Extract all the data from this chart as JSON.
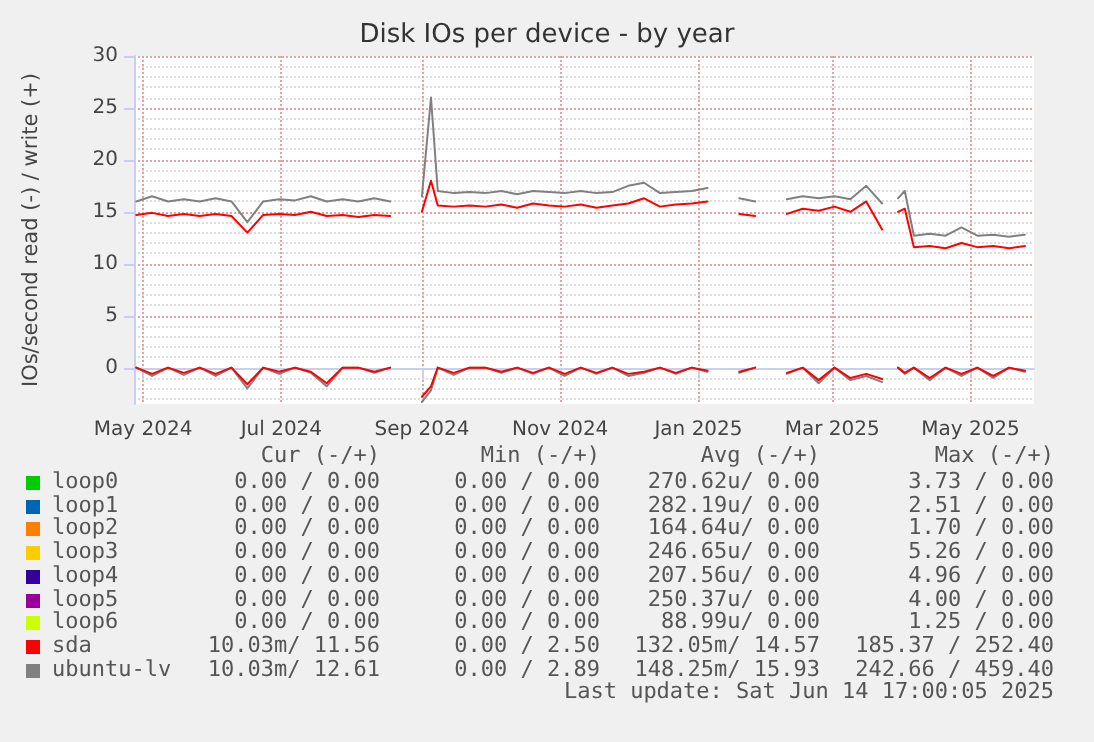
{
  "chart_data": {
    "type": "line",
    "title": "Disk IOs per device - by year",
    "ylabel": "IOs/second read (-) / write (+)",
    "x": [
      "2024-04-28",
      "2024-05-05",
      "2024-05-12",
      "2024-05-19",
      "2024-05-26",
      "2024-06-02",
      "2024-06-09",
      "2024-06-16",
      "2024-06-23",
      "2024-06-30",
      "2024-07-07",
      "2024-07-14",
      "2024-07-21",
      "2024-07-28",
      "2024-08-04",
      "2024-08-11",
      "2024-08-18",
      "2024-08-25",
      "2024-09-01",
      "2024-09-05",
      "2024-09-08",
      "2024-09-15",
      "2024-09-22",
      "2024-09-29",
      "2024-10-06",
      "2024-10-13",
      "2024-10-20",
      "2024-10-27",
      "2024-11-03",
      "2024-11-10",
      "2024-11-17",
      "2024-11-24",
      "2024-12-01",
      "2024-12-08",
      "2024-12-15",
      "2024-12-22",
      "2024-12-29",
      "2025-01-05",
      "2025-01-12",
      "2025-01-19",
      "2025-01-26",
      "2025-02-02",
      "2025-02-09",
      "2025-02-16",
      "2025-02-23",
      "2025-03-02",
      "2025-03-09",
      "2025-03-16",
      "2025-03-23",
      "2025-03-27",
      "2025-03-30",
      "2025-04-02",
      "2025-04-06",
      "2025-04-13",
      "2025-04-20",
      "2025-04-27",
      "2025-05-04",
      "2025-05-11",
      "2025-05-18",
      "2025-05-25"
    ],
    "series": [
      {
        "name": "loop0",
        "color": "#00cc00",
        "values": [
          null,
          null,
          null,
          null,
          null,
          null,
          null,
          null,
          null,
          null,
          null,
          null,
          null,
          null,
          null,
          null,
          null,
          null,
          null,
          null,
          null,
          null,
          null,
          null,
          null,
          null,
          null,
          null,
          null,
          null,
          null,
          null,
          null,
          null,
          null,
          null,
          null,
          null,
          null,
          null,
          null,
          null,
          null,
          null,
          null,
          null,
          null,
          null,
          null,
          null,
          null,
          null,
          null,
          null,
          null,
          null,
          null,
          null,
          null,
          null
        ]
      },
      {
        "name": "loop1",
        "color": "#0066b3",
        "values": [
          null,
          null,
          null,
          null,
          null,
          null,
          null,
          null,
          null,
          null,
          null,
          null,
          null,
          null,
          null,
          null,
          null,
          null,
          null,
          null,
          null,
          null,
          null,
          null,
          null,
          null,
          null,
          null,
          null,
          null,
          null,
          null,
          null,
          null,
          null,
          null,
          null,
          null,
          null,
          null,
          null,
          null,
          null,
          null,
          null,
          null,
          null,
          null,
          null,
          null,
          null,
          null,
          null,
          null,
          null,
          null,
          null,
          null,
          null,
          null
        ]
      },
      {
        "name": "loop2",
        "color": "#ff8000",
        "values": [
          null,
          null,
          null,
          null,
          null,
          null,
          null,
          null,
          null,
          null,
          null,
          null,
          null,
          null,
          null,
          null,
          null,
          null,
          null,
          null,
          null,
          null,
          null,
          null,
          null,
          null,
          null,
          null,
          null,
          null,
          null,
          null,
          null,
          null,
          null,
          null,
          null,
          null,
          null,
          null,
          null,
          null,
          null,
          null,
          null,
          null,
          null,
          null,
          null,
          null,
          null,
          null,
          null,
          null,
          null,
          null,
          null,
          null,
          null,
          null
        ]
      },
      {
        "name": "loop3",
        "color": "#ffcc00",
        "values": [
          null,
          null,
          null,
          null,
          null,
          null,
          null,
          null,
          null,
          null,
          null,
          null,
          null,
          null,
          null,
          null,
          null,
          null,
          null,
          null,
          null,
          null,
          null,
          null,
          null,
          null,
          null,
          null,
          null,
          null,
          null,
          null,
          null,
          null,
          null,
          null,
          null,
          null,
          null,
          null,
          null,
          null,
          null,
          null,
          null,
          null,
          null,
          null,
          null,
          null,
          null,
          null,
          null,
          null,
          null,
          null,
          null,
          null,
          null,
          null
        ]
      },
      {
        "name": "loop4",
        "color": "#330099",
        "values": [
          null,
          null,
          null,
          null,
          null,
          null,
          null,
          null,
          null,
          null,
          null,
          null,
          null,
          null,
          null,
          null,
          null,
          null,
          null,
          null,
          null,
          null,
          null,
          null,
          null,
          null,
          null,
          null,
          null,
          null,
          null,
          null,
          null,
          null,
          null,
          null,
          null,
          null,
          null,
          null,
          null,
          null,
          null,
          null,
          null,
          null,
          null,
          null,
          null,
          null,
          null,
          null,
          null,
          null,
          null,
          null,
          null,
          null,
          null,
          null
        ]
      },
      {
        "name": "loop5",
        "color": "#990099",
        "values": [
          null,
          null,
          null,
          null,
          null,
          null,
          null,
          null,
          null,
          null,
          null,
          null,
          null,
          null,
          null,
          null,
          null,
          null,
          null,
          null,
          null,
          null,
          null,
          null,
          null,
          null,
          null,
          null,
          null,
          null,
          null,
          null,
          null,
          null,
          null,
          null,
          null,
          null,
          null,
          null,
          null,
          null,
          null,
          null,
          null,
          null,
          null,
          null,
          null,
          null,
          null,
          null,
          null,
          null,
          null,
          null,
          null,
          null,
          null,
          null
        ]
      },
      {
        "name": "loop6",
        "color": "#ccff00",
        "values": [
          null,
          null,
          null,
          null,
          null,
          null,
          null,
          null,
          null,
          null,
          null,
          null,
          null,
          null,
          null,
          null,
          null,
          null,
          null,
          null,
          null,
          null,
          null,
          null,
          null,
          null,
          null,
          null,
          null,
          null,
          null,
          null,
          null,
          null,
          null,
          null,
          null,
          null,
          null,
          null,
          null,
          null,
          null,
          null,
          null,
          null,
          null,
          null,
          null,
          null,
          null,
          null,
          null,
          null,
          null,
          null,
          null,
          null,
          null,
          null
        ]
      },
      {
        "color": "#808080",
        "values": [
          0,
          -0.8,
          0,
          -0.7,
          0,
          -0.8,
          0,
          -2,
          0,
          -0.6,
          0,
          -0.5,
          -1.8,
          0,
          0,
          -0.5,
          0,
          null,
          -3.3,
          -2.2,
          0,
          -0.7,
          0,
          0,
          -0.5,
          0,
          -0.6,
          0,
          -0.8,
          0,
          -0.6,
          0,
          -0.8,
          -0.5,
          0,
          -0.6,
          0,
          -0.4,
          null,
          -0.5,
          0,
          null,
          -0.6,
          0,
          -1.5,
          0,
          -1.2,
          -0.8,
          -1.4,
          null,
          0,
          -0.6,
          0,
          -1.2,
          0,
          -0.8,
          0,
          -1,
          0,
          -0.4
        ]
      },
      {
        "color": "#ff0000",
        "values": [
          0,
          -0.6,
          0,
          -0.5,
          0,
          -0.6,
          0,
          -1.6,
          0,
          -0.4,
          0,
          -0.4,
          -1.5,
          0,
          0,
          -0.4,
          0,
          null,
          -2.8,
          -1.8,
          0,
          -0.5,
          0,
          0,
          -0.4,
          0,
          -0.5,
          0,
          -0.6,
          0,
          -0.5,
          0,
          -0.6,
          -0.4,
          0,
          -0.5,
          0,
          -0.3,
          null,
          -0.4,
          0,
          null,
          -0.5,
          0,
          -1.2,
          0,
          -1,
          -0.6,
          -1.1,
          null,
          0,
          -0.5,
          0,
          -1,
          0,
          -0.6,
          0,
          -0.8,
          0,
          -0.3
        ]
      },
      {
        "name": "sda",
        "color": "#ff0000",
        "values": [
          14.7,
          14.9,
          14.6,
          14.8,
          14.6,
          14.8,
          14.6,
          13,
          14.7,
          14.8,
          14.7,
          15,
          14.6,
          14.7,
          14.5,
          14.7,
          14.6,
          null,
          15,
          18,
          15.6,
          15.5,
          15.6,
          15.5,
          15.7,
          15.4,
          15.8,
          15.6,
          15.5,
          15.7,
          15.4,
          15.6,
          15.8,
          16.3,
          15.5,
          15.7,
          15.8,
          16,
          null,
          14.8,
          14.6,
          null,
          14.8,
          15.3,
          15.1,
          15.5,
          15,
          16,
          13.3,
          null,
          15,
          15.3,
          11.6,
          11.7,
          11.5,
          12,
          11.6,
          11.7,
          11.5,
          11.7
        ]
      },
      {
        "name": "ubuntu-lv",
        "color": "#808080",
        "values": [
          16,
          16.5,
          16,
          16.2,
          16,
          16.3,
          16,
          14,
          16,
          16.2,
          16.1,
          16.5,
          16,
          16.2,
          16,
          16.3,
          16,
          null,
          16.5,
          26,
          17,
          16.8,
          16.9,
          16.8,
          17,
          16.7,
          17,
          16.9,
          16.8,
          17,
          16.8,
          16.9,
          17.5,
          17.8,
          16.8,
          16.9,
          17,
          17.3,
          null,
          16.3,
          16,
          null,
          16.2,
          16.5,
          16.3,
          16.5,
          16.2,
          17.5,
          15.8,
          null,
          16.3,
          17,
          12.7,
          12.9,
          12.7,
          13.5,
          12.7,
          12.8,
          12.6,
          12.8
        ]
      }
    ],
    "xlim": [
      "2024-04-27",
      "2025-05-29"
    ],
    "xticks": [
      {
        "value": "2024-05-01",
        "label": "May 2024"
      },
      {
        "value": "2024-07-01",
        "label": "Jul 2024"
      },
      {
        "value": "2024-09-01",
        "label": "Sep 2024"
      },
      {
        "value": "2024-11-01",
        "label": "Nov 2024"
      },
      {
        "value": "2025-01-01",
        "label": "Jan 2025"
      },
      {
        "value": "2025-03-01",
        "label": "Mar 2025"
      },
      {
        "value": "2025-05-01",
        "label": "May 2025"
      }
    ],
    "ylim": [
      -3.5,
      30
    ],
    "yticks": [
      0,
      5,
      10,
      15,
      20,
      25,
      30
    ],
    "grid": true,
    "legend": "bottom",
    "marker": "none",
    "line_style": "solid",
    "annotations": [
      "Cur (-/+)",
      "Min (-/+)",
      "Avg (-/+)",
      "Max (-/+)",
      "0.00 / 0.00",
      "0.00 / 0.00",
      "270.62u/ 0.00",
      "3.73 / 0.00",
      "0.00 / 0.00",
      "0.00 / 0.00",
      "282.19u/ 0.00",
      "2.51 / 0.00",
      "0.00 / 0.00",
      "0.00 / 0.00",
      "164.64u/ 0.00",
      "1.70 / 0.00",
      "0.00 / 0.00",
      "0.00 / 0.00",
      "246.65u/ 0.00",
      "5.26 / 0.00",
      "0.00 / 0.00",
      "0.00 / 0.00",
      "207.56u/ 0.00",
      "4.96 / 0.00",
      "0.00 / 0.00",
      "0.00 / 0.00",
      "250.37u/ 0.00",
      "4.00 / 0.00",
      "0.00 / 0.00",
      "0.00 / 0.00",
      "88.99u/ 0.00",
      "1.25 / 0.00",
      "10.03m/ 11.56",
      "0.00 / 2.50",
      "132.05m/ 14.57",
      "185.37 / 252.40",
      "10.03m/ 12.61",
      "0.00 / 2.89",
      "148.25m/ 15.93",
      "242.66 / 459.40",
      "Last update: Sat Jun 14 17:00:05 2025"
    ]
  }
}
